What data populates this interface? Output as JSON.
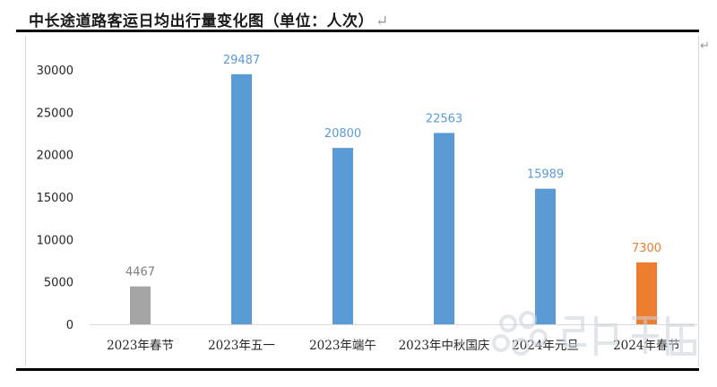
{
  "page": {
    "title": "中长途道路客运日均出行量变化图（单位：人次）",
    "return_mark": "↵",
    "side_mark": "↵"
  },
  "watermark": {
    "icon": "dots-flower-logo-icon",
    "color": "#c9d3dc"
  },
  "chart_data": {
    "type": "bar",
    "title": "中长途道路客运日均出行量变化图（单位：人次）",
    "xlabel": "",
    "ylabel": "",
    "ylim": [
      0,
      30000
    ],
    "yticks": [
      0,
      5000,
      10000,
      15000,
      20000,
      25000,
      30000
    ],
    "grid": false,
    "legend": "none",
    "categories": [
      "2023年春节",
      "2023年五一",
      "2023年端午",
      "2023年中秋国庆",
      "2024年元旦",
      "2024年春节"
    ],
    "values": [
      4467,
      29487,
      20800,
      22563,
      15989,
      7300
    ],
    "bar_colors": [
      "#a5a5a5",
      "#5b9bd5",
      "#5b9bd5",
      "#5b9bd5",
      "#5b9bd5",
      "#ed7d31"
    ],
    "label_colors": [
      "#7f7f7f",
      "#5b9bd5",
      "#5b9bd5",
      "#5b9bd5",
      "#5b9bd5",
      "#ed7d31"
    ]
  }
}
